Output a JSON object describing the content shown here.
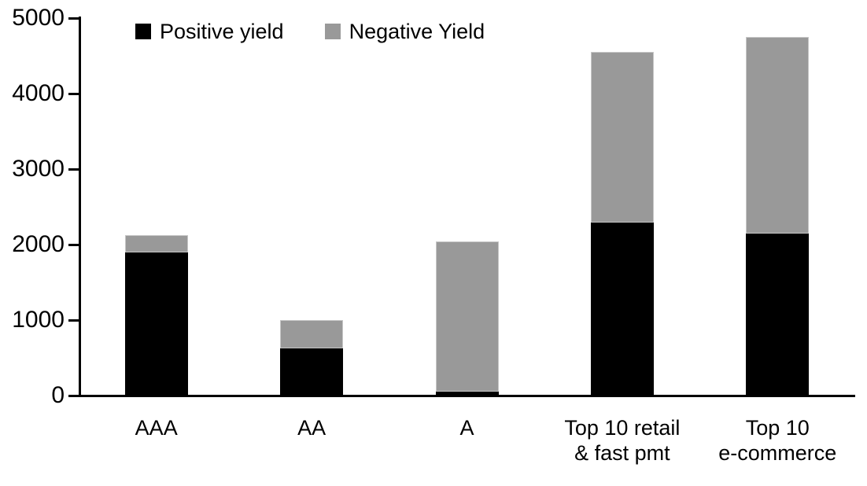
{
  "chart_data": {
    "type": "bar",
    "stacked": true,
    "title": "",
    "xlabel": "",
    "ylabel": "",
    "categories": [
      "AAA",
      "AA",
      "A",
      "Top 10 retail & fast pmt",
      "Top 10 e-commerce"
    ],
    "category_label_lines": [
      [
        "AAA"
      ],
      [
        "AA"
      ],
      [
        "A"
      ],
      [
        "Top 10 retail",
        "& fast pmt"
      ],
      [
        "Top 10",
        "e-commerce"
      ]
    ],
    "series": [
      {
        "name": "Positive yield",
        "color": "#000000",
        "values": [
          1900,
          630,
          50,
          2290,
          2150
        ]
      },
      {
        "name": "Negative Yield",
        "color": "#999999",
        "values": [
          220,
          370,
          1990,
          2260,
          2600
        ]
      }
    ],
    "totals": [
      2120,
      1000,
      2040,
      4550,
      4750
    ],
    "ylim": [
      0,
      5000
    ],
    "yticks": [
      0,
      1000,
      2000,
      3000,
      4000,
      5000
    ],
    "grid": false,
    "legend_position": "top-left",
    "background_color": "#ffffff",
    "axis_color": "#000000"
  }
}
